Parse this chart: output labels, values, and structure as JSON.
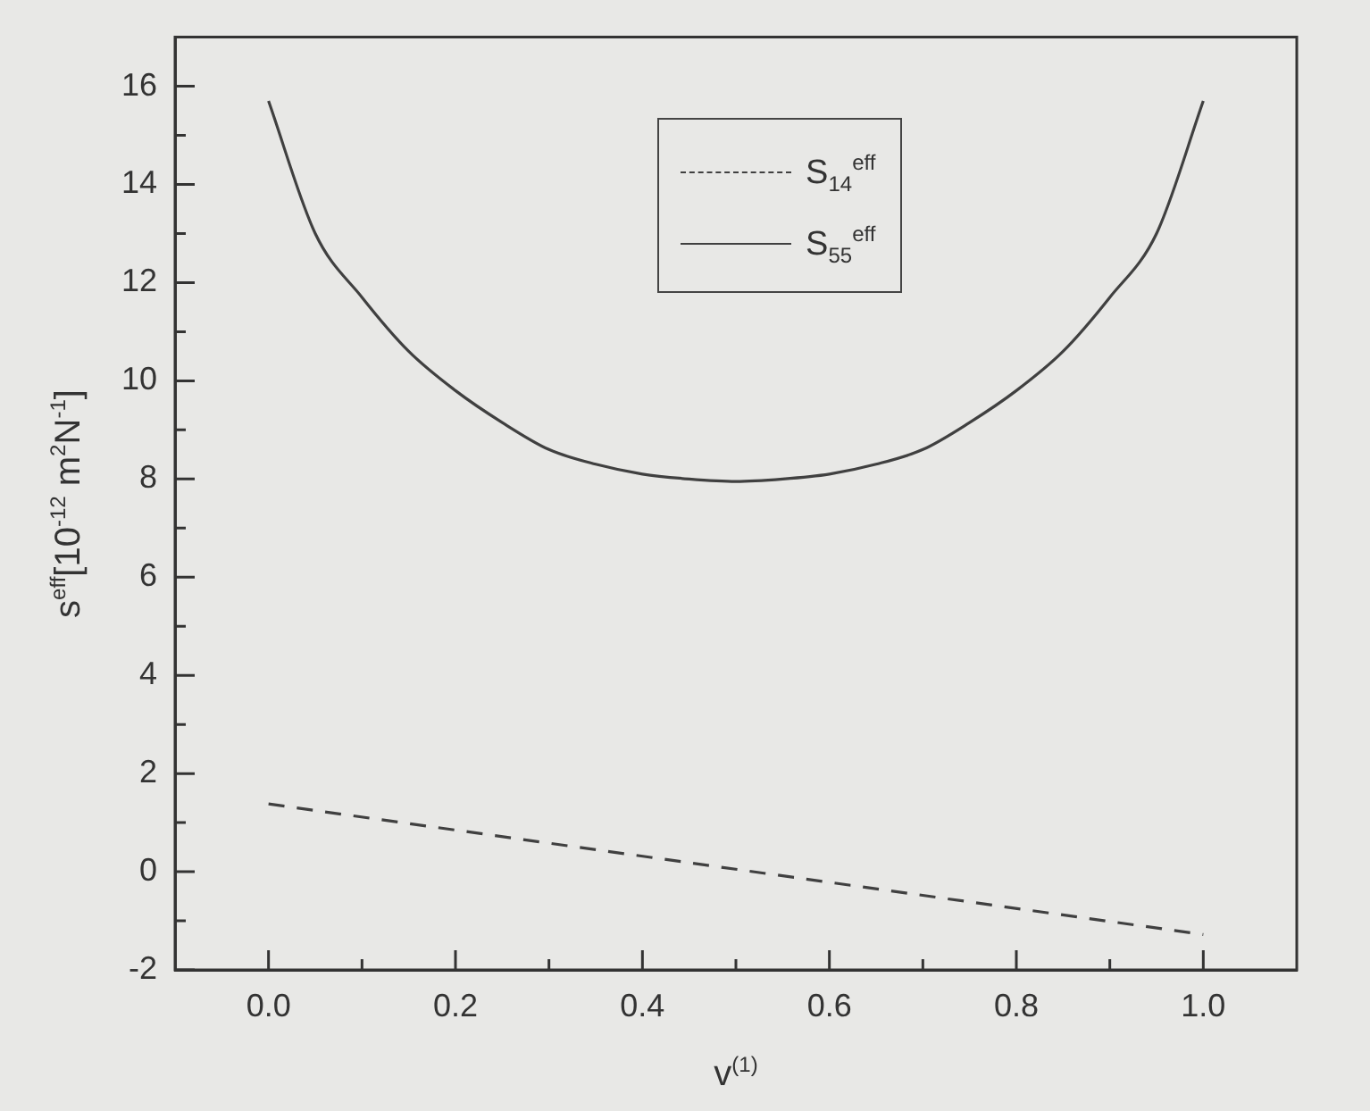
{
  "chart_data": {
    "type": "line",
    "xlabel": "v$^{(1)}$",
    "ylabel": "s$^{eff}$[10$^{-12}$ m$^{2}$N$^{-1}$]",
    "xlim": [
      -0.1,
      1.1
    ],
    "ylim": [
      -2,
      17
    ],
    "xticks": [
      {
        "value": 0,
        "label": "0.0"
      },
      {
        "value": 0.1,
        "label": null
      },
      {
        "value": 0.2,
        "label": "0.2"
      },
      {
        "value": 0.3,
        "label": null
      },
      {
        "value": 0.4,
        "label": "0.4"
      },
      {
        "value": 0.5,
        "label": null
      },
      {
        "value": 0.6,
        "label": "0.6"
      },
      {
        "value": 0.7,
        "label": null
      },
      {
        "value": 0.8,
        "label": "0.8"
      },
      {
        "value": 0.9,
        "label": null
      },
      {
        "value": 1,
        "label": "1.0"
      }
    ],
    "yticks": [
      -2,
      {
        "value": -1,
        "label": null
      },
      0,
      {
        "value": 1,
        "label": null
      },
      2,
      {
        "value": 3,
        "label": null
      },
      4,
      {
        "value": 5,
        "label": null
      },
      6,
      {
        "value": 7,
        "label": null
      },
      8,
      {
        "value": 9,
        "label": null
      },
      10,
      {
        "value": 11,
        "label": null
      },
      12,
      {
        "value": 13,
        "label": null
      },
      14,
      {
        "value": 15,
        "label": null
      },
      16
    ],
    "grid": false,
    "legend": "top",
    "marker": "none",
    "series": [
      {
        "name": "S$_{14}$$^{eff}$",
        "color": "#404040",
        "line_style": "dashed",
        "x": [
          0,
          1
        ],
        "values": [
          1.38,
          -1.28
        ]
      },
      {
        "name": "S$_{55}$$^{eff}$",
        "color": "#404040",
        "line_style": "solid",
        "x": [
          0,
          0.05,
          0.1,
          0.15,
          0.2,
          0.25,
          0.3,
          0.35,
          0.4,
          0.45,
          0.5,
          0.55,
          0.6,
          0.65,
          0.7,
          0.75,
          0.8,
          0.85,
          0.9,
          0.95,
          1
        ],
        "values": [
          15.7,
          13.0,
          11.7,
          10.6,
          9.8,
          9.15,
          8.6,
          8.3,
          8.1,
          8.0,
          7.95,
          8.0,
          8.1,
          8.3,
          8.6,
          9.15,
          9.8,
          10.6,
          11.7,
          13.0,
          15.7
        ]
      }
    ]
  }
}
